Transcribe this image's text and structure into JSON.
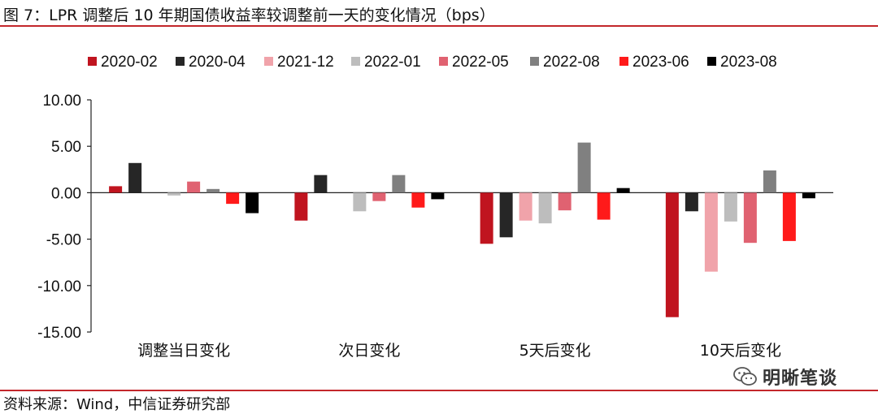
{
  "figure": {
    "title": "图 7：LPR 调整后 10 年期国债收益率较调整前一天的变化情况（bps）",
    "source": "资料来源：Wind，中信证券研究部",
    "watermark": "明晰笔谈",
    "watermark_icon": "wechat-icon"
  },
  "chart_data": {
    "type": "bar",
    "title": "图 7：LPR 调整后 10 年期国债收益率较调整前一天的变化情况（bps）",
    "xlabel": "",
    "ylabel": "",
    "ylim": [
      -15,
      10
    ],
    "yticks": [
      10,
      5,
      0,
      -5,
      -10,
      -15
    ],
    "ytick_labels": [
      "10.00",
      "5.00",
      "0.00",
      "-5.00",
      "-10.00",
      "-15.00"
    ],
    "grid": false,
    "legend_position": "top",
    "categories": [
      "调整当日变化",
      "次日变化",
      "5天后变化",
      "10天后变化"
    ],
    "series": [
      {
        "name": "2020-02",
        "color": "#c0141f",
        "values": [
          0.7,
          -3.0,
          -5.5,
          -13.4
        ]
      },
      {
        "name": "2020-04",
        "color": "#262626",
        "values": [
          3.2,
          1.9,
          -4.8,
          -2.0
        ]
      },
      {
        "name": "2021-12",
        "color": "#f0a3aa",
        "values": [
          0.0,
          0.0,
          -3.0,
          -8.5
        ]
      },
      {
        "name": "2022-01",
        "color": "#bdbdbd",
        "values": [
          -0.3,
          -2.0,
          -3.3,
          -3.1
        ]
      },
      {
        "name": "2022-05",
        "color": "#e06271",
        "values": [
          1.2,
          -0.9,
          -1.9,
          -5.4
        ]
      },
      {
        "name": "2022-08",
        "color": "#808080",
        "values": [
          0.4,
          1.9,
          5.4,
          2.4
        ]
      },
      {
        "name": "2023-06",
        "color": "#ff1a1a",
        "values": [
          -1.2,
          -1.6,
          -2.9,
          -5.2
        ]
      },
      {
        "name": "2023-08",
        "color": "#000000",
        "values": [
          -2.2,
          -0.7,
          0.5,
          -0.6
        ]
      }
    ]
  }
}
